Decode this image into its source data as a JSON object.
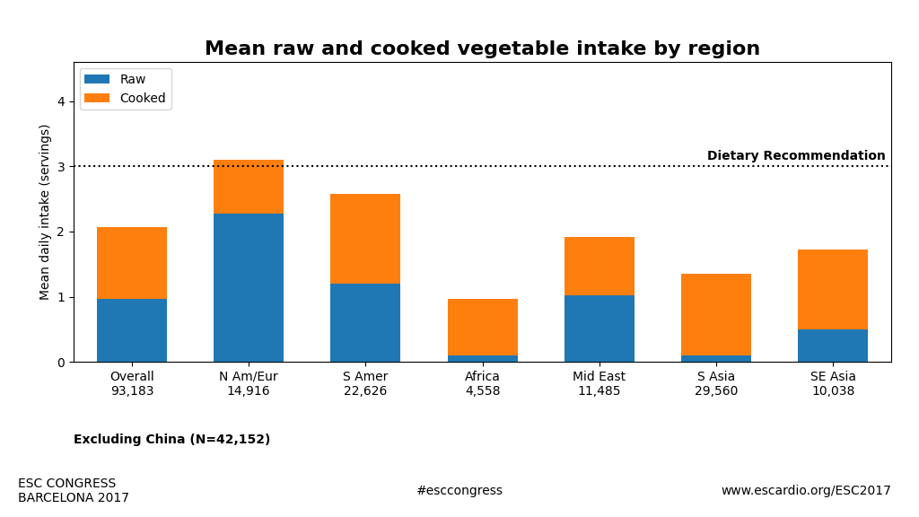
{
  "chart_data": {
    "type": "bar",
    "stacked": true,
    "title": "Mean raw and cooked vegetable intake by region",
    "ylabel": "Mean daily intake (servings)",
    "categories": [
      "Overall\n93,183",
      "N Am/Eur\n14,916",
      "S Amer\n22,626",
      "Africa\n4,558",
      "Mid East\n11,485",
      "S Asia\n29,560",
      "SE Asia\n10,038"
    ],
    "series": [
      {
        "name": "Raw",
        "values": [
          0.97,
          2.27,
          1.2,
          0.1,
          1.02,
          0.1,
          0.5
        ]
      },
      {
        "name": "Cooked",
        "values": [
          1.1,
          0.83,
          1.38,
          0.87,
          0.9,
          1.25,
          1.22
        ]
      }
    ],
    "ylim": [
      0,
      4.6
    ],
    "yticks": [
      0,
      1,
      2,
      3,
      4
    ],
    "legend": "upper left",
    "reference_line": {
      "value": 3.0,
      "label": "Dietary Recommendation"
    },
    "footnote": "Excluding China (N=42,152)",
    "annotations": [
      "ESC CONGRESS\nBARCELONA 2017",
      "#esccongress",
      "www.escardio.org/ESC2017"
    ]
  }
}
